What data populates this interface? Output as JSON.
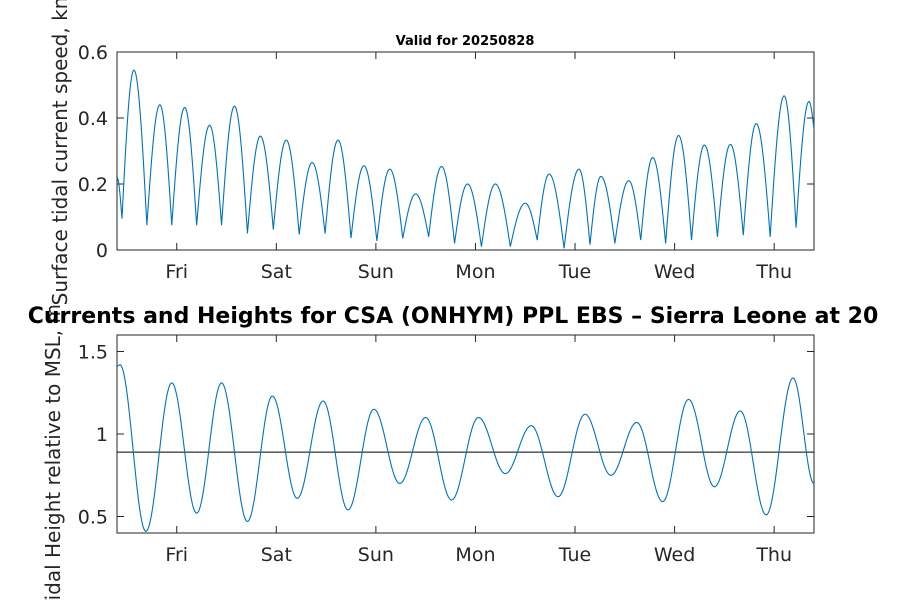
{
  "main_title": "Currents and Heights for CSA (ONHYM) PPL EBS  – Sierra Leone at 20",
  "chart_data": [
    {
      "type": "line",
      "title": "Valid for 20250828",
      "ylabel": "Surface tidal current speed, kn",
      "xlabel": "",
      "xlim": [
        0,
        7
      ],
      "ylim": [
        0,
        0.6
      ],
      "yticks": [
        0,
        0.2,
        0.4,
        0.6
      ],
      "ytick_labels": [
        "0",
        "0.2",
        "0.4",
        "0.6"
      ],
      "xticks": [
        0.6,
        1.6,
        2.6,
        3.6,
        4.6,
        5.6,
        6.6
      ],
      "xtick_labels": [
        "Fri",
        "Sat",
        "Sun",
        "Mon",
        "Tue",
        "Wed",
        "Thu"
      ],
      "grid": false,
      "color": "#0072BD",
      "peaks": [
        {
          "x": 0.17,
          "y": 0.545
        },
        {
          "x": 0.43,
          "y": 0.44
        },
        {
          "x": 0.68,
          "y": 0.432
        },
        {
          "x": 0.93,
          "y": 0.378
        },
        {
          "x": 1.18,
          "y": 0.436
        },
        {
          "x": 1.44,
          "y": 0.345
        },
        {
          "x": 1.7,
          "y": 0.333
        },
        {
          "x": 1.96,
          "y": 0.265
        },
        {
          "x": 2.22,
          "y": 0.333
        },
        {
          "x": 2.48,
          "y": 0.255
        },
        {
          "x": 2.74,
          "y": 0.245
        },
        {
          "x": 3.0,
          "y": 0.17
        },
        {
          "x": 3.26,
          "y": 0.253
        },
        {
          "x": 3.52,
          "y": 0.2
        },
        {
          "x": 3.8,
          "y": 0.2
        },
        {
          "x": 4.1,
          "y": 0.142
        },
        {
          "x": 4.34,
          "y": 0.23
        },
        {
          "x": 4.64,
          "y": 0.245
        },
        {
          "x": 4.86,
          "y": 0.223
        },
        {
          "x": 5.14,
          "y": 0.21
        },
        {
          "x": 5.38,
          "y": 0.28
        },
        {
          "x": 5.64,
          "y": 0.347
        },
        {
          "x": 5.9,
          "y": 0.318
        },
        {
          "x": 6.16,
          "y": 0.32
        },
        {
          "x": 6.42,
          "y": 0.383
        },
        {
          "x": 6.7,
          "y": 0.467
        },
        {
          "x": 6.95,
          "y": 0.45
        }
      ],
      "troughs": [
        {
          "x": 0.05,
          "y": 0.095
        },
        {
          "x": 0.3,
          "y": 0.075
        },
        {
          "x": 0.55,
          "y": 0.075
        },
        {
          "x": 0.8,
          "y": 0.075
        },
        {
          "x": 1.05,
          "y": 0.075
        },
        {
          "x": 1.31,
          "y": 0.05
        },
        {
          "x": 1.57,
          "y": 0.062
        },
        {
          "x": 1.83,
          "y": 0.047
        },
        {
          "x": 2.09,
          "y": 0.05
        },
        {
          "x": 2.35,
          "y": 0.036
        },
        {
          "x": 2.61,
          "y": 0.027
        },
        {
          "x": 2.87,
          "y": 0.035
        },
        {
          "x": 3.13,
          "y": 0.04
        },
        {
          "x": 3.39,
          "y": 0.02
        },
        {
          "x": 3.66,
          "y": 0.01
        },
        {
          "x": 3.95,
          "y": 0.01
        },
        {
          "x": 4.22,
          "y": 0.03
        },
        {
          "x": 4.49,
          "y": 0.005
        },
        {
          "x": 4.75,
          "y": 0.016
        },
        {
          "x": 5.0,
          "y": 0.02
        },
        {
          "x": 5.26,
          "y": 0.03
        },
        {
          "x": 5.51,
          "y": 0.02
        },
        {
          "x": 5.77,
          "y": 0.03
        },
        {
          "x": 6.03,
          "y": 0.04
        },
        {
          "x": 6.29,
          "y": 0.045
        },
        {
          "x": 6.56,
          "y": 0.04
        },
        {
          "x": 6.82,
          "y": 0.068
        }
      ],
      "start": {
        "x": 0.0,
        "y": 0.22
      },
      "end": {
        "x": 7.0,
        "y": 0.365
      }
    },
    {
      "type": "line",
      "title": "",
      "ylabel": "Tidal Height relative to MSL, m",
      "xlabel": "",
      "xlim": [
        0,
        7
      ],
      "ylim": [
        0.4,
        1.6
      ],
      "yticks": [
        0.5,
        1,
        1.5
      ],
      "ytick_labels": [
        "0.5",
        "1",
        "1.5"
      ],
      "xticks": [
        0.6,
        1.6,
        2.6,
        3.6,
        4.6,
        5.6,
        6.6
      ],
      "xtick_labels": [
        "Fri",
        "Sat",
        "Sun",
        "Mon",
        "Tue",
        "Wed",
        "Thu"
      ],
      "grid": false,
      "color": "#0072BD",
      "reference_line": {
        "y": 0.89,
        "color": "#000000"
      },
      "extrema": [
        {
          "x": 0.03,
          "y": 1.42
        },
        {
          "x": 0.29,
          "y": 0.41
        },
        {
          "x": 0.55,
          "y": 1.31
        },
        {
          "x": 0.8,
          "y": 0.52
        },
        {
          "x": 1.05,
          "y": 1.31
        },
        {
          "x": 1.31,
          "y": 0.47
        },
        {
          "x": 1.56,
          "y": 1.23
        },
        {
          "x": 1.81,
          "y": 0.61
        },
        {
          "x": 2.07,
          "y": 1.2
        },
        {
          "x": 2.32,
          "y": 0.54
        },
        {
          "x": 2.58,
          "y": 1.15
        },
        {
          "x": 2.84,
          "y": 0.7
        },
        {
          "x": 3.1,
          "y": 1.1
        },
        {
          "x": 3.36,
          "y": 0.6
        },
        {
          "x": 3.63,
          "y": 1.1
        },
        {
          "x": 3.9,
          "y": 0.76
        },
        {
          "x": 4.16,
          "y": 1.05
        },
        {
          "x": 4.43,
          "y": 0.62
        },
        {
          "x": 4.7,
          "y": 1.12
        },
        {
          "x": 4.96,
          "y": 0.75
        },
        {
          "x": 5.22,
          "y": 1.07
        },
        {
          "x": 5.48,
          "y": 0.59
        },
        {
          "x": 5.74,
          "y": 1.21
        },
        {
          "x": 6.0,
          "y": 0.68
        },
        {
          "x": 6.26,
          "y": 1.14
        },
        {
          "x": 6.52,
          "y": 0.51
        },
        {
          "x": 6.79,
          "y": 1.34
        }
      ],
      "start": {
        "x": 0.0,
        "y": 1.41
      },
      "end": {
        "x": 7.0,
        "y": 0.7
      }
    }
  ]
}
